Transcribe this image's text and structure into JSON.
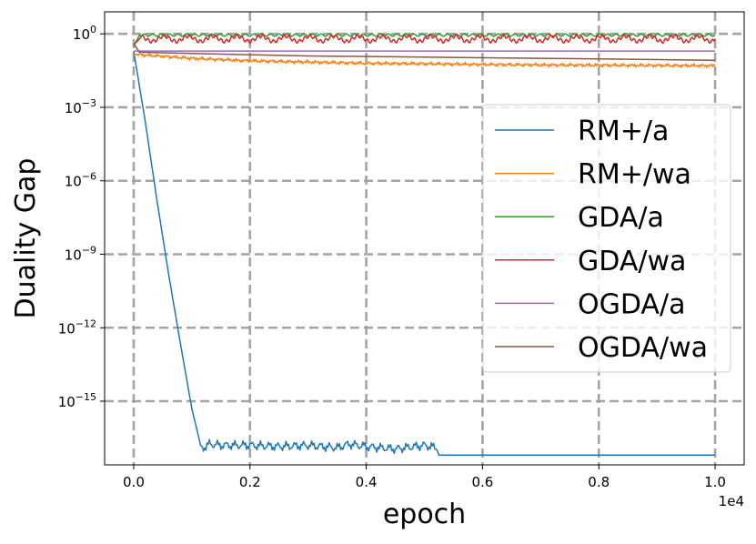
{
  "chart_data": {
    "type": "line",
    "title": "",
    "xlabel": "epoch",
    "ylabel": "Duality Gap",
    "x_offset_label": "1e4",
    "xscale": "linear",
    "yscale": "log",
    "xlim": [
      -500,
      10500
    ],
    "ylim_exponents": [
      -17.6,
      0.9
    ],
    "x_ticks": [
      {
        "value": 0,
        "label": "0.0"
      },
      {
        "value": 2000,
        "label": "0.2"
      },
      {
        "value": 4000,
        "label": "0.4"
      },
      {
        "value": 6000,
        "label": "0.6"
      },
      {
        "value": 8000,
        "label": "0.8"
      },
      {
        "value": 10000,
        "label": "1.0"
      }
    ],
    "y_ticks": [
      {
        "exp": 0,
        "base": "10",
        "power": "0"
      },
      {
        "exp": -3,
        "base": "10",
        "power": "−3"
      },
      {
        "exp": -6,
        "base": "10",
        "power": "−6"
      },
      {
        "exp": -9,
        "base": "10",
        "power": "−9"
      },
      {
        "exp": -12,
        "base": "10",
        "power": "−12"
      },
      {
        "exp": -15,
        "base": "10",
        "power": "−15"
      }
    ],
    "grid": true,
    "legend_position": "center-right",
    "series": [
      {
        "name": "RM+/a",
        "color": "#1f77b4",
        "x": [
          0,
          200,
          400,
          600,
          800,
          1000,
          1100,
          1150,
          1200,
          1300,
          1500,
          2000,
          2500,
          3000,
          3500,
          3700,
          4000,
          4500,
          5000,
          5200,
          5250,
          6000,
          8000,
          10000
        ],
        "y_log10": [
          -0.7,
          -3.6,
          -6.8,
          -9.8,
          -12.6,
          -15.3,
          -16.3,
          -16.8,
          -16.9,
          -16.75,
          -16.8,
          -16.8,
          -16.85,
          -16.8,
          -16.9,
          -16.75,
          -16.85,
          -16.95,
          -16.8,
          -16.9,
          -17.2,
          -17.2,
          -17.2,
          -17.2
        ]
      },
      {
        "name": "RM+/wa",
        "color": "#ff7f0e",
        "x": [
          0,
          100,
          1000,
          2000,
          3000,
          4000,
          5000,
          6000,
          7000,
          8000,
          9000,
          10000
        ],
        "y_log10": [
          -0.85,
          -0.85,
          -1.0,
          -1.1,
          -1.15,
          -1.2,
          -1.22,
          -1.25,
          -1.27,
          -1.28,
          -1.29,
          -1.3
        ]
      },
      {
        "name": "GDA/a",
        "color": "#2ca02c",
        "x": [
          0,
          100,
          10000
        ],
        "y_log10": [
          -0.5,
          -0.05,
          -0.05
        ]
      },
      {
        "name": "GDA/wa",
        "color": "#d62728",
        "x": [
          0,
          100,
          10000
        ],
        "y_log10": [
          -0.45,
          -0.2,
          -0.2
        ]
      },
      {
        "name": "OGDA/a",
        "color": "#9467bd",
        "x": [
          0,
          10000
        ],
        "y_log10": [
          -0.7,
          -0.7
        ]
      },
      {
        "name": "OGDA/wa",
        "color": "#8c564b",
        "x": [
          0,
          100,
          1000,
          3000,
          5000,
          7000,
          9000,
          10000
        ],
        "y_log10": [
          -0.4,
          -0.75,
          -0.8,
          -0.9,
          -0.95,
          -1.0,
          -1.05,
          -1.08
        ]
      }
    ]
  }
}
